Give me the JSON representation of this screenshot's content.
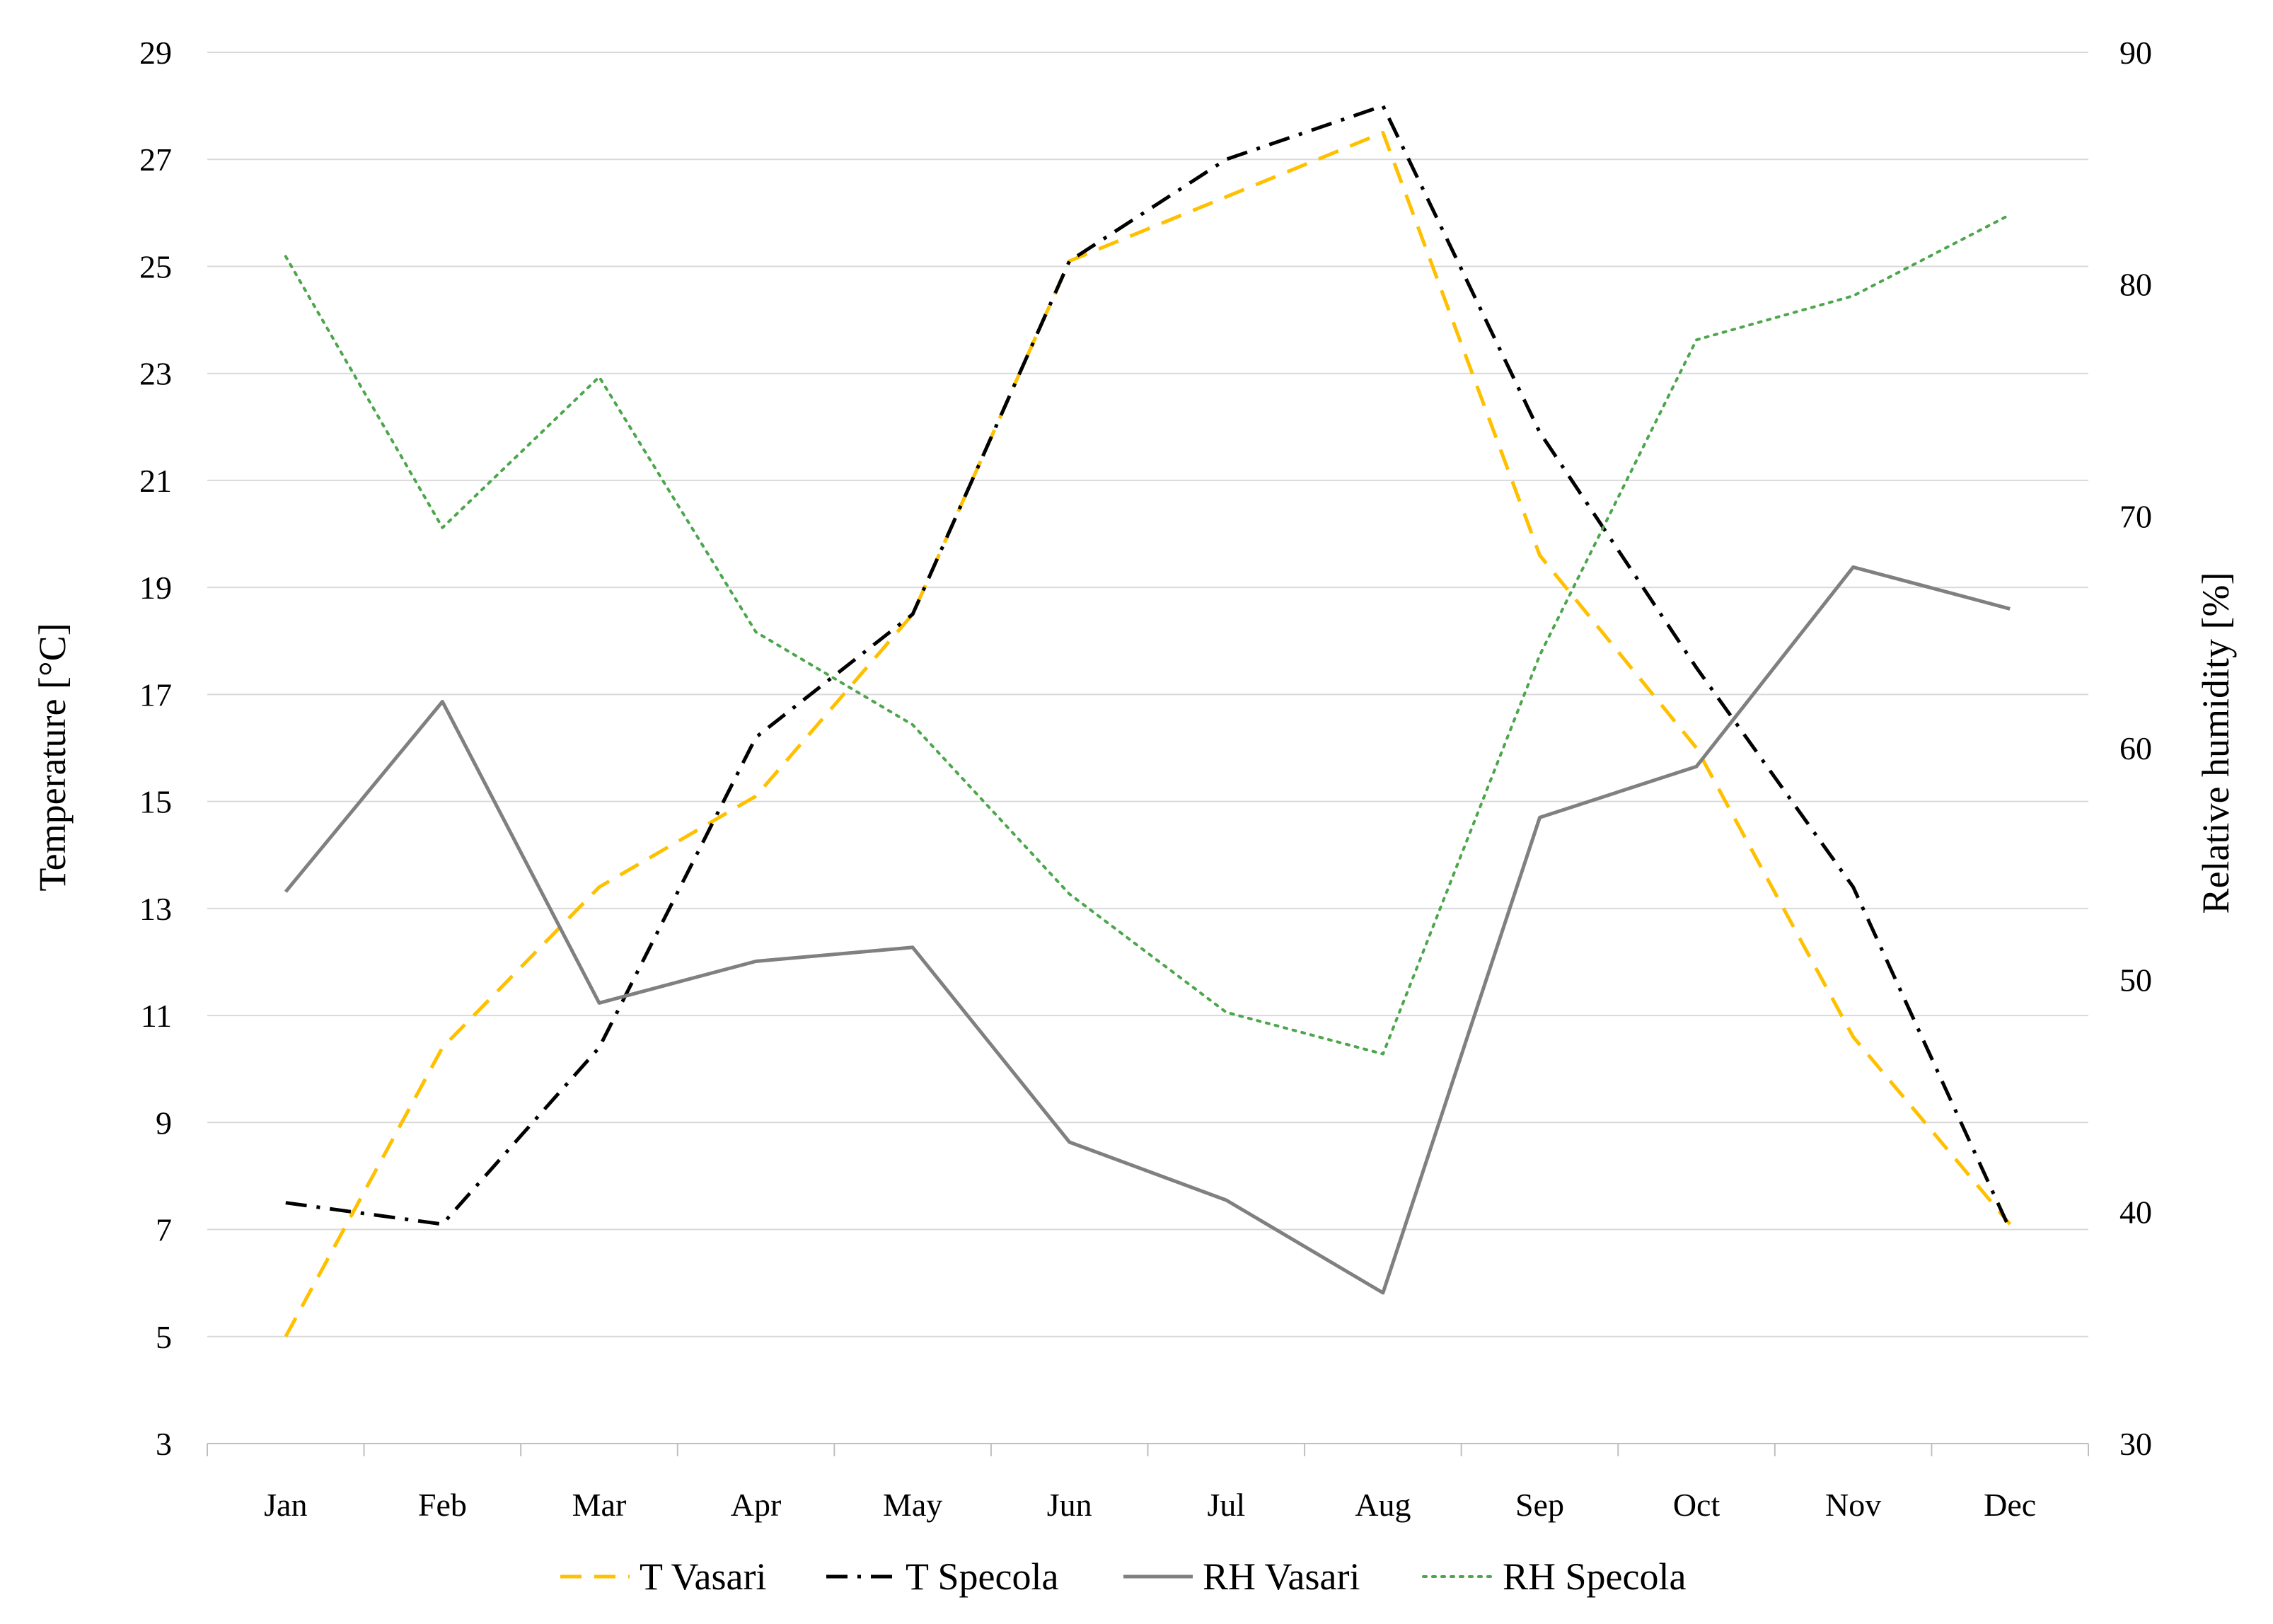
{
  "chart_data": {
    "type": "line",
    "title": "",
    "categories": [
      "Jan",
      "Feb",
      "Mar",
      "Apr",
      "May",
      "Jun",
      "Jul",
      "Aug",
      "Sep",
      "Oct",
      "Nov",
      "Dec"
    ],
    "y_left": {
      "label": "Temperature [°C]",
      "lim": [
        3,
        29
      ],
      "ticks": [
        3,
        5,
        7,
        9,
        11,
        13,
        15,
        17,
        19,
        21,
        23,
        25,
        27,
        29
      ]
    },
    "y_right": {
      "label": "Relative humidity [%]",
      "lim": [
        30,
        90
      ],
      "ticks": [
        30,
        40,
        50,
        60,
        70,
        80,
        90
      ]
    },
    "grid": "horizontal",
    "legend_position": "bottom",
    "series": [
      {
        "name": "T Vasari",
        "axis": "left",
        "style": "dashed",
        "color": "#FFC000",
        "values": [
          5.0,
          10.4,
          13.4,
          15.1,
          18.5,
          25.1,
          26.3,
          27.5,
          19.6,
          16.0,
          10.6,
          7.1
        ]
      },
      {
        "name": "T Specola",
        "axis": "left",
        "style": "dash-dot",
        "color": "#000000",
        "values": [
          7.5,
          7.1,
          10.4,
          16.2,
          18.5,
          25.1,
          27.0,
          28.0,
          21.9,
          17.5,
          13.4,
          7.0
        ]
      },
      {
        "name": "RH Vasari",
        "axis": "right",
        "style": "solid",
        "color": "#808080",
        "values": [
          53.8,
          62.0,
          49.0,
          50.8,
          51.4,
          43.0,
          40.5,
          36.5,
          57.0,
          59.2,
          67.8,
          66.0
        ]
      },
      {
        "name": "RH Specola",
        "axis": "right",
        "style": "dotted",
        "color": "#4CA64C",
        "values": [
          81.2,
          69.5,
          76.0,
          65.0,
          61.0,
          53.7,
          48.6,
          46.8,
          64.0,
          77.6,
          79.5,
          83.0
        ]
      }
    ]
  }
}
